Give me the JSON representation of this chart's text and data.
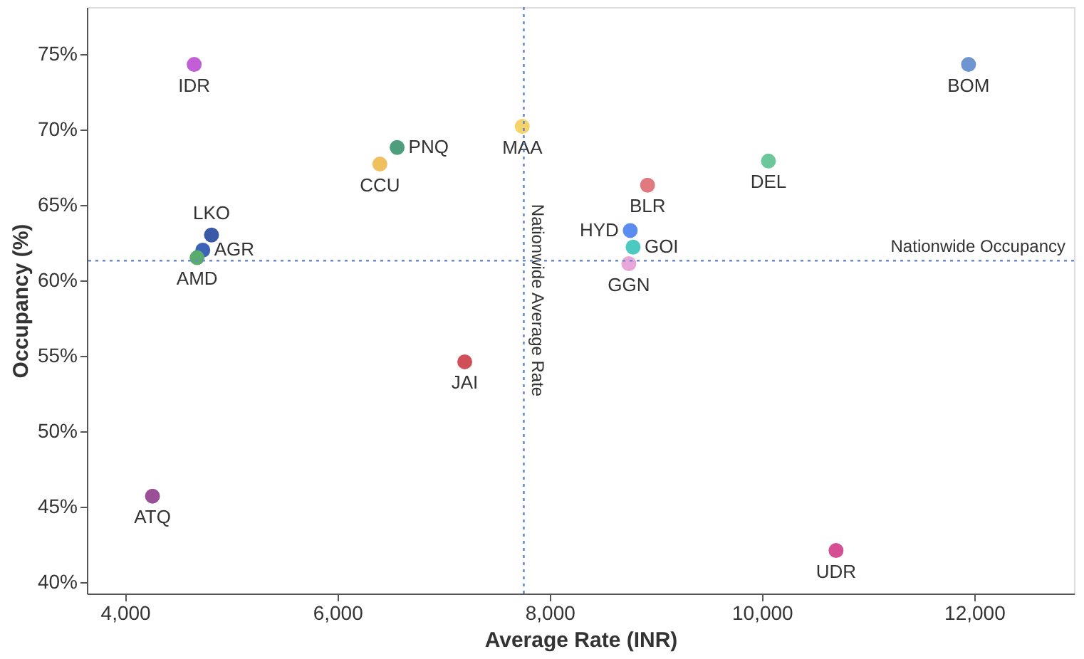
{
  "chart_data": {
    "type": "scatter",
    "xlabel": "Average Rate (INR)",
    "ylabel": "Occupancy (%)",
    "xlim": [
      3640,
      12940
    ],
    "xticks": [
      {
        "value": 4000,
        "label": "4,000"
      },
      {
        "value": 6000,
        "label": "6,000"
      },
      {
        "value": 8000,
        "label": "8,000"
      },
      {
        "value": 10000,
        "label": "10,000"
      },
      {
        "value": 12000,
        "label": "12,000"
      }
    ],
    "ylim": [
      39.25,
      78.1
    ],
    "yticks": [
      {
        "value": 40,
        "label": "40%"
      },
      {
        "value": 45,
        "label": "45%"
      },
      {
        "value": 50,
        "label": "50%"
      },
      {
        "value": 55,
        "label": "55%"
      },
      {
        "value": 60,
        "label": "60%"
      },
      {
        "value": 65,
        "label": "65%"
      },
      {
        "value": 70,
        "label": "70%"
      },
      {
        "value": 75,
        "label": "75%"
      }
    ],
    "grid": false,
    "ref_lines": [
      {
        "axis": "x",
        "value": 7756,
        "label": "Nationwide Average Rate",
        "color": "#6f8bc4",
        "line_style": "dotted"
      },
      {
        "axis": "y",
        "value": 61.3,
        "label": "Nationwide Occupancy",
        "color": "#6f8bc4",
        "line_style": "dotted"
      }
    ],
    "series": [
      {
        "name": "IDR",
        "color": "#c25fd6",
        "x": [
          4651
        ],
        "values": [
          74.3
        ]
      },
      {
        "name": "BOM",
        "color": "#6f95d0",
        "x": [
          11946
        ],
        "values": [
          74.3
        ]
      },
      {
        "name": "MAA",
        "color": "#f5d36b",
        "x": [
          7742
        ],
        "values": [
          70.2
        ]
      },
      {
        "name": "PNQ",
        "color": "#4e9e7e",
        "x": [
          6563
        ],
        "values": [
          68.8
        ]
      },
      {
        "name": "CCU",
        "color": "#f0c060",
        "x": [
          6400
        ],
        "values": [
          67.7
        ]
      },
      {
        "name": "DEL",
        "color": "#6cc79a",
        "x": [
          10061
        ],
        "values": [
          67.9
        ]
      },
      {
        "name": "BLR",
        "color": "#e07a80",
        "x": [
          8922
        ],
        "values": [
          66.3
        ]
      },
      {
        "name": "LKO",
        "color": "#3a5aa8",
        "x": [
          4814
        ],
        "values": [
          63.0
        ]
      },
      {
        "name": "HYD",
        "color": "#5b8cf0",
        "x": [
          8759
        ],
        "values": [
          63.3
        ]
      },
      {
        "name": "GOI",
        "color": "#4cc9c0",
        "x": [
          8786
        ],
        "values": [
          62.2
        ]
      },
      {
        "name": "AGR",
        "color": "#3b63b8",
        "x": [
          4732
        ],
        "values": [
          62.0
        ]
      },
      {
        "name": "AMD",
        "color": "#5aab6e",
        "x": [
          4678
        ],
        "values": [
          61.5
        ]
      },
      {
        "name": "GGN",
        "color": "#e8a6d9",
        "x": [
          8746
        ],
        "values": [
          61.1
        ]
      },
      {
        "name": "JAI",
        "color": "#d0505a",
        "x": [
          7200
        ],
        "values": [
          54.6
        ]
      },
      {
        "name": "ATQ",
        "color": "#9b4f96",
        "x": [
          4258
        ],
        "values": [
          45.7
        ]
      },
      {
        "name": "UDR",
        "color": "#d64f94",
        "x": [
          10698
        ],
        "values": [
          42.1
        ]
      }
    ]
  }
}
